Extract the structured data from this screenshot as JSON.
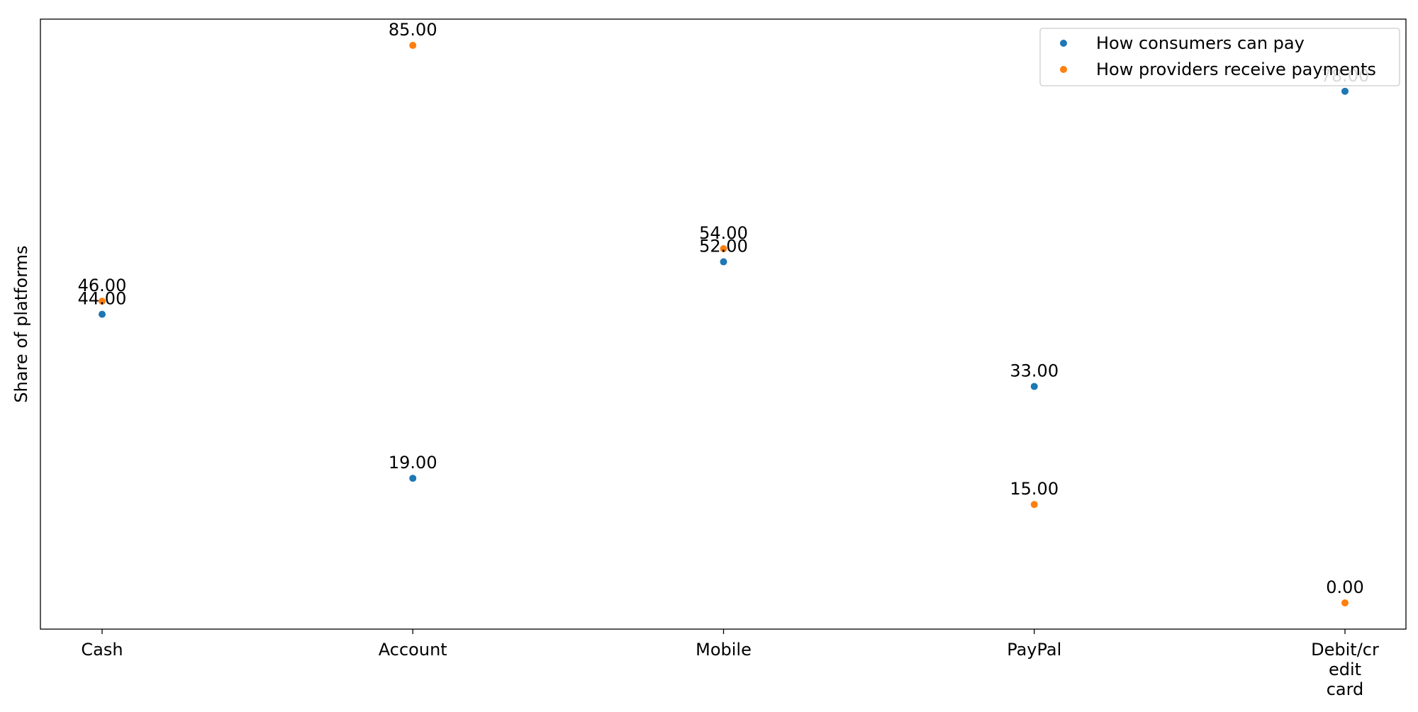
{
  "chart_data": {
    "type": "scatter",
    "categories": [
      "Cash",
      "Account",
      "Mobile",
      "PayPal",
      "Debit/credit card"
    ],
    "tick_labels": [
      [
        "Cash"
      ],
      [
        "Account"
      ],
      [
        "Mobile"
      ],
      [
        "PayPal"
      ],
      [
        "Debit/cr",
        "edit",
        "card"
      ]
    ],
    "ylabel": "Share of platforms",
    "xlabel": "",
    "title": "",
    "ylim": [
      -4,
      89
    ],
    "grid": false,
    "y_ticks_visible": false,
    "legend_position": "top-right",
    "series": [
      {
        "name": "How consumers can pay",
        "color": "#1f77b4",
        "values": [
          44,
          19,
          52,
          33,
          78
        ]
      },
      {
        "name": "How providers receive payments",
        "color": "#ff7f0e",
        "values": [
          46,
          85,
          54,
          15,
          0
        ]
      }
    ],
    "data_labels": [
      [
        "44.00",
        "19.00",
        "52.00",
        "33.00",
        "78.00"
      ],
      [
        "46.00",
        "85.00",
        "54.00",
        "15.00",
        "0.00"
      ]
    ]
  }
}
